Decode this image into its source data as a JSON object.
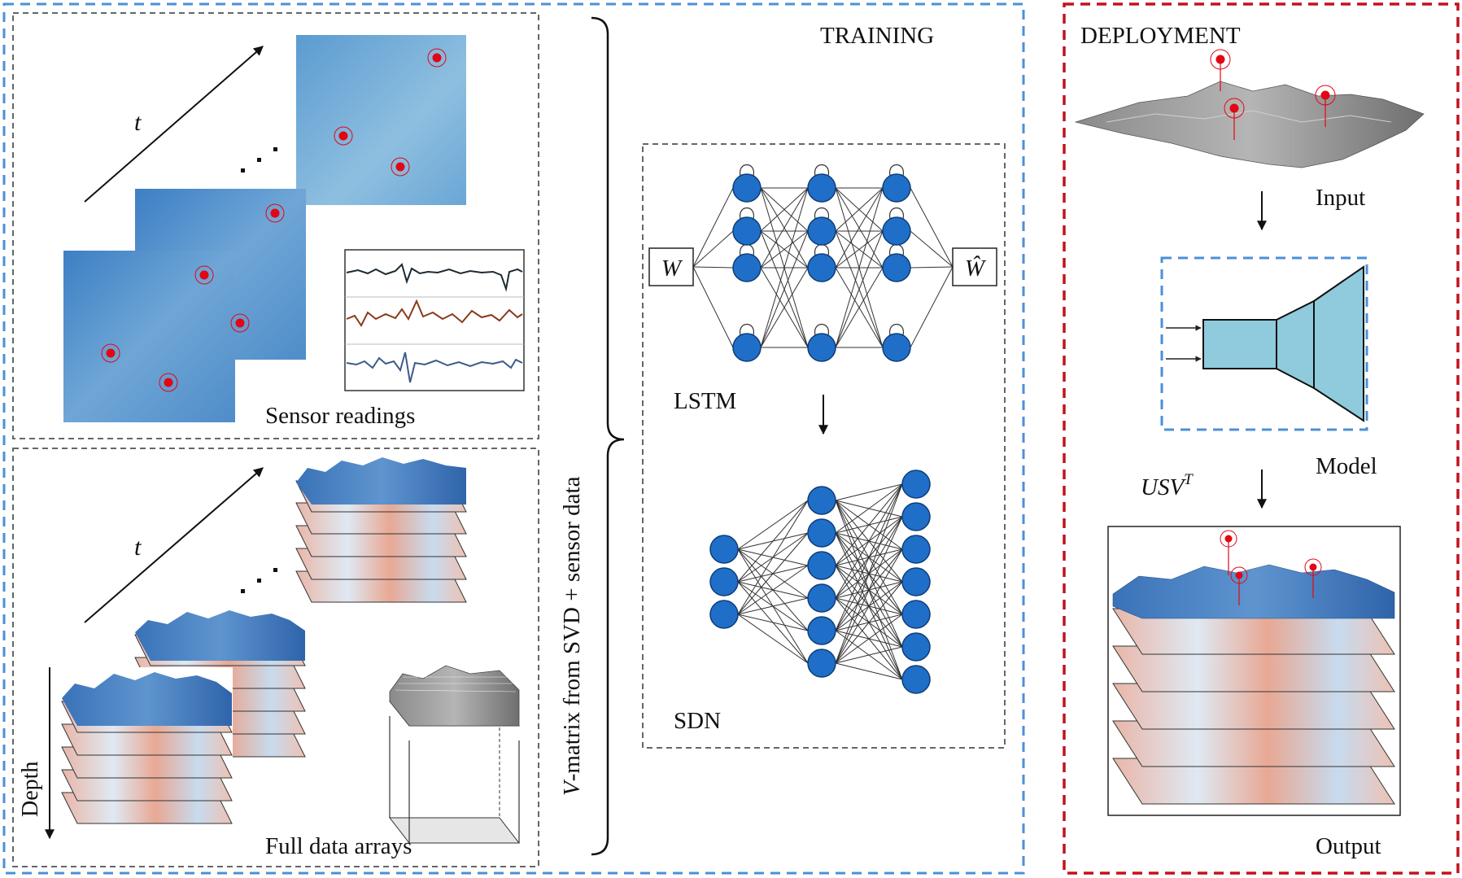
{
  "training": {
    "title": "TRAINING",
    "time_label": "t",
    "sensor_caption": "Sensor readings",
    "full_caption": "Full data arrays",
    "depth_label": "Depth",
    "brace_label_var": "V",
    "brace_label_rest": "-matrix from SVD + sensor data",
    "network": {
      "input_label": "W",
      "output_label": "Ŵ",
      "lstm_label": "LSTM",
      "sdn_label": "SDN",
      "lstm_layer_sizes": [
        4,
        4,
        4
      ],
      "sdn_layer_sizes": [
        3,
        6,
        7
      ]
    }
  },
  "deployment": {
    "title": "DEPLOYMENT",
    "input_label": "Input",
    "model_label": "Model",
    "svd_label_base": "USV",
    "svd_label_sup": "T",
    "output_label": "Output"
  },
  "colors": {
    "training_border": "#4a90d9",
    "deployment_border": "#c0141c",
    "node_fill": "#1f6fc8",
    "node_stroke": "#0d3d78",
    "sensor_dot": "#e30613",
    "model_fill": "#8fcbdc",
    "trace_1": "#1c2a33",
    "trace_2": "#8a3a1a",
    "trace_3": "#3d5a8a"
  }
}
